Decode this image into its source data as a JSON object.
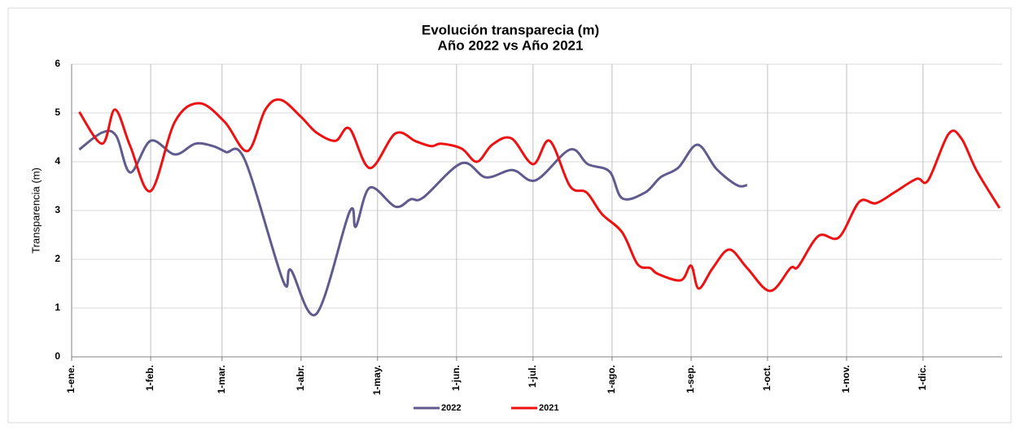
{
  "chart_data": {
    "type": "line",
    "title": "Evolución transparecia (m)",
    "subtitle": "Año 2022 vs Año 2021",
    "y_label": "Transparencia (m)",
    "xlim": [
      0,
      365
    ],
    "xticks": [
      {
        "value": 0,
        "label": "1-ene."
      },
      {
        "value": 31,
        "label": "1-feb."
      },
      {
        "value": 59,
        "label": "1-mar."
      },
      {
        "value": 90,
        "label": "1-abr."
      },
      {
        "value": 120,
        "label": "1-may."
      },
      {
        "value": 151,
        "label": "1-jun."
      },
      {
        "value": 181,
        "label": "1-jul."
      },
      {
        "value": 212,
        "label": "1-ago."
      },
      {
        "value": 243,
        "label": "1-sep."
      },
      {
        "value": 273,
        "label": "1-oct."
      },
      {
        "value": 304,
        "label": "1-nov."
      },
      {
        "value": 334,
        "label": "1-dic."
      }
    ],
    "ylim": [
      0,
      6
    ],
    "yticks": [
      0,
      1,
      2,
      3,
      4,
      5,
      6
    ],
    "grid": true,
    "legend": "bottom",
    "series": [
      {
        "name": "2022",
        "color": "#5f5b8f",
        "x": [
          3,
          12,
          17.5,
          23,
          31,
          40.5,
          48.5,
          55.5,
          60.5,
          68,
          83,
          86,
          96,
          109,
          111.5,
          117,
          127,
          133,
          138,
          153,
          162.5,
          173,
          182,
          195.5,
          202.5,
          211,
          216,
          225,
          231,
          238,
          245.5,
          253,
          261,
          265
        ],
        "values": [
          4.25,
          4.6,
          4.53,
          3.78,
          4.43,
          4.15,
          4.37,
          4.32,
          4.2,
          4.03,
          1.55,
          1.78,
          0.88,
          2.97,
          2.67,
          3.47,
          3.08,
          3.23,
          3.27,
          3.97,
          3.68,
          3.83,
          3.62,
          4.25,
          3.95,
          3.8,
          3.25,
          3.37,
          3.68,
          3.88,
          4.35,
          3.85,
          3.52,
          3.52
        ]
      },
      {
        "name": "2021",
        "color": "#ee1111",
        "x": [
          3,
          12,
          17,
          23,
          31,
          40.5,
          50,
          60,
          69,
          76,
          82,
          90,
          96,
          103.5,
          109,
          117,
          127,
          135,
          141,
          145,
          153,
          159,
          165,
          172.5,
          181,
          187.5,
          195.5,
          202,
          208,
          216,
          222,
          227,
          230,
          239,
          243,
          246,
          251.5,
          258,
          265,
          274,
          282,
          285,
          293,
          301,
          309,
          315.5,
          323,
          331.5,
          336,
          344,
          349,
          355,
          364
        ],
        "values": [
          5.02,
          4.37,
          5.07,
          4.32,
          3.4,
          4.82,
          5.2,
          4.82,
          4.22,
          5.07,
          5.27,
          4.92,
          4.6,
          4.43,
          4.68,
          3.87,
          4.58,
          4.42,
          4.32,
          4.37,
          4.27,
          4.0,
          4.35,
          4.48,
          3.95,
          4.43,
          3.5,
          3.37,
          2.93,
          2.55,
          1.9,
          1.82,
          1.7,
          1.57,
          1.87,
          1.4,
          1.82,
          2.2,
          1.82,
          1.35,
          1.82,
          1.85,
          2.48,
          2.45,
          3.18,
          3.15,
          3.38,
          3.65,
          3.62,
          4.57,
          4.48,
          3.82,
          3.05
        ]
      }
    ]
  }
}
